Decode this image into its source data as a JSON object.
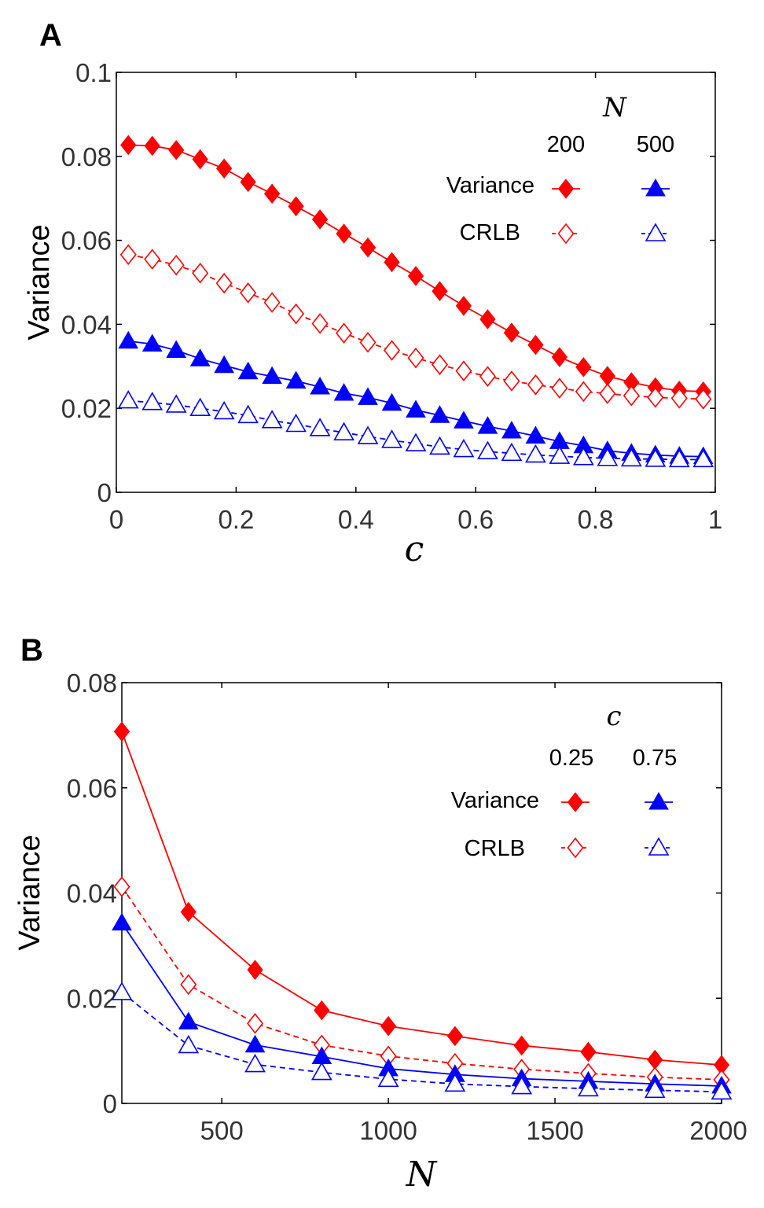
{
  "chart_data": [
    {
      "panel": "A",
      "type": "line",
      "xlabel": "c",
      "ylabel": "Variance",
      "xlim": [
        0,
        1
      ],
      "ylim": [
        0,
        0.1
      ],
      "xticks": [
        "0",
        "0.2",
        "0.4",
        "0.6",
        "0.8",
        "1"
      ],
      "yticks": [
        "0",
        "0.02",
        "0.04",
        "0.06",
        "0.08",
        "0.1"
      ],
      "legend": {
        "title": "N",
        "columns": [
          "200",
          "500"
        ],
        "rows": [
          "Variance",
          "CRLB"
        ],
        "position": "top-right"
      },
      "x": [
        0.02,
        0.06,
        0.1,
        0.14,
        0.18,
        0.22,
        0.26,
        0.3,
        0.34,
        0.38,
        0.42,
        0.46,
        0.5,
        0.54,
        0.58,
        0.62,
        0.66,
        0.7,
        0.74,
        0.78,
        0.82,
        0.86,
        0.9,
        0.94,
        0.98
      ],
      "series": [
        {
          "name": "Variance N=200",
          "color": "#ff0000",
          "marker": "diamond",
          "filled": true,
          "dashed": false,
          "values": [
            0.0827,
            0.0825,
            0.0815,
            0.0793,
            0.0771,
            0.0739,
            0.0711,
            0.0681,
            0.065,
            0.0616,
            0.0583,
            0.0548,
            0.0515,
            0.0479,
            0.0444,
            0.0412,
            0.038,
            0.0351,
            0.0322,
            0.0298,
            0.0277,
            0.0262,
            0.025,
            0.0242,
            0.024
          ]
        },
        {
          "name": "CRLB N=200",
          "color": "#ff0000",
          "marker": "diamond",
          "filled": false,
          "dashed": true,
          "values": [
            0.0566,
            0.0555,
            0.0541,
            0.0522,
            0.0498,
            0.0475,
            0.0452,
            0.0425,
            0.0402,
            0.0379,
            0.0357,
            0.0338,
            0.032,
            0.0304,
            0.0289,
            0.0276,
            0.0265,
            0.0256,
            0.0248,
            0.024,
            0.0235,
            0.023,
            0.0226,
            0.0224,
            0.0222
          ]
        },
        {
          "name": "Variance N=500",
          "color": "#0000ff",
          "marker": "triangle",
          "filled": true,
          "dashed": false,
          "values": [
            0.036,
            0.0353,
            0.0338,
            0.0318,
            0.0302,
            0.0287,
            0.0276,
            0.0265,
            0.0251,
            0.0236,
            0.0226,
            0.0212,
            0.0196,
            0.0183,
            0.017,
            0.0157,
            0.0146,
            0.0134,
            0.0121,
            0.0111,
            0.0099,
            0.0093,
            0.0089,
            0.0086,
            0.0085
          ]
        },
        {
          "name": "CRLB N=500",
          "color": "#0000ff",
          "marker": "triangle",
          "filled": false,
          "dashed": true,
          "values": [
            0.0218,
            0.0214,
            0.0208,
            0.02,
            0.0192,
            0.0183,
            0.0171,
            0.0162,
            0.0152,
            0.0142,
            0.0133,
            0.0124,
            0.0116,
            0.0108,
            0.0102,
            0.0097,
            0.0093,
            0.0089,
            0.0086,
            0.0083,
            0.0081,
            0.008,
            0.0079,
            0.0078,
            0.0078
          ]
        }
      ]
    },
    {
      "panel": "B",
      "type": "line",
      "xlabel": "N",
      "ylabel": "Variance",
      "xlim": [
        200,
        2000
      ],
      "ylim": [
        0,
        0.08
      ],
      "xticks": [
        "500",
        "1000",
        "1500",
        "2000"
      ],
      "xtick_values": [
        500,
        1000,
        1500,
        2000
      ],
      "yticks": [
        "0",
        "0.02",
        "0.04",
        "0.06",
        "0.08"
      ],
      "legend": {
        "title": "c",
        "columns": [
          "0.25",
          "0.75"
        ],
        "rows": [
          "Variance",
          "CRLB"
        ],
        "position": "top-right"
      },
      "x": [
        200,
        400,
        600,
        800,
        1000,
        1200,
        1400,
        1600,
        1800,
        2000
      ],
      "series": [
        {
          "name": "Variance c=0.25",
          "color": "#ff0000",
          "marker": "diamond",
          "filled": true,
          "dashed": false,
          "values": [
            0.0707,
            0.0364,
            0.0254,
            0.0177,
            0.0147,
            0.0128,
            0.011,
            0.0098,
            0.0083,
            0.0073
          ]
        },
        {
          "name": "CRLB c=0.25",
          "color": "#ff0000",
          "marker": "diamond",
          "filled": false,
          "dashed": true,
          "values": [
            0.0412,
            0.0226,
            0.0152,
            0.0111,
            0.009,
            0.0076,
            0.0065,
            0.0057,
            0.005,
            0.0045
          ]
        },
        {
          "name": "Variance c=0.75",
          "color": "#0000ff",
          "marker": "triangle",
          "filled": true,
          "dashed": false,
          "values": [
            0.0343,
            0.0155,
            0.0111,
            0.0089,
            0.0066,
            0.0055,
            0.0047,
            0.0042,
            0.0037,
            0.0033
          ]
        },
        {
          "name": "CRLB c=0.75",
          "color": "#0000ff",
          "marker": "triangle",
          "filled": false,
          "dashed": true,
          "values": [
            0.0211,
            0.011,
            0.0074,
            0.0059,
            0.0046,
            0.0037,
            0.0032,
            0.0028,
            0.0025,
            0.0022
          ]
        }
      ]
    }
  ]
}
